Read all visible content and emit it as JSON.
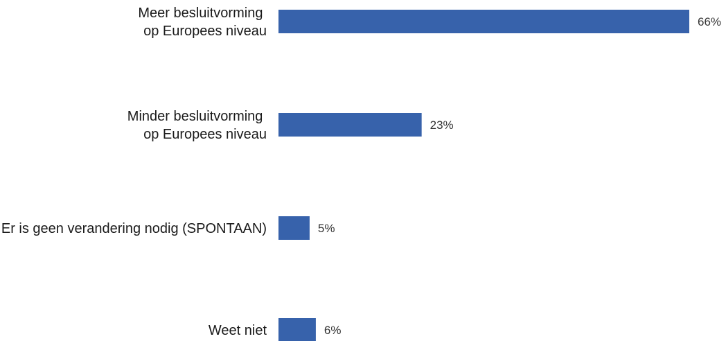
{
  "chart_data": {
    "type": "bar",
    "orientation": "horizontal",
    "categories": [
      [
        "Meer besluitvorming ",
        "op Europees niveau"
      ],
      [
        "Minder besluitvorming ",
        "op Europees niveau"
      ],
      [
        "Er is geen verandering nodig (SPONTAAN)"
      ],
      [
        "Weet niet"
      ]
    ],
    "values": [
      66,
      23,
      5,
      6
    ],
    "value_labels": [
      "66%",
      "23%",
      "5%",
      "6%"
    ],
    "unit": "%",
    "xlim": [
      0,
      66
    ],
    "grid": false,
    "legend": "none",
    "bar_color": "#3762ab"
  }
}
